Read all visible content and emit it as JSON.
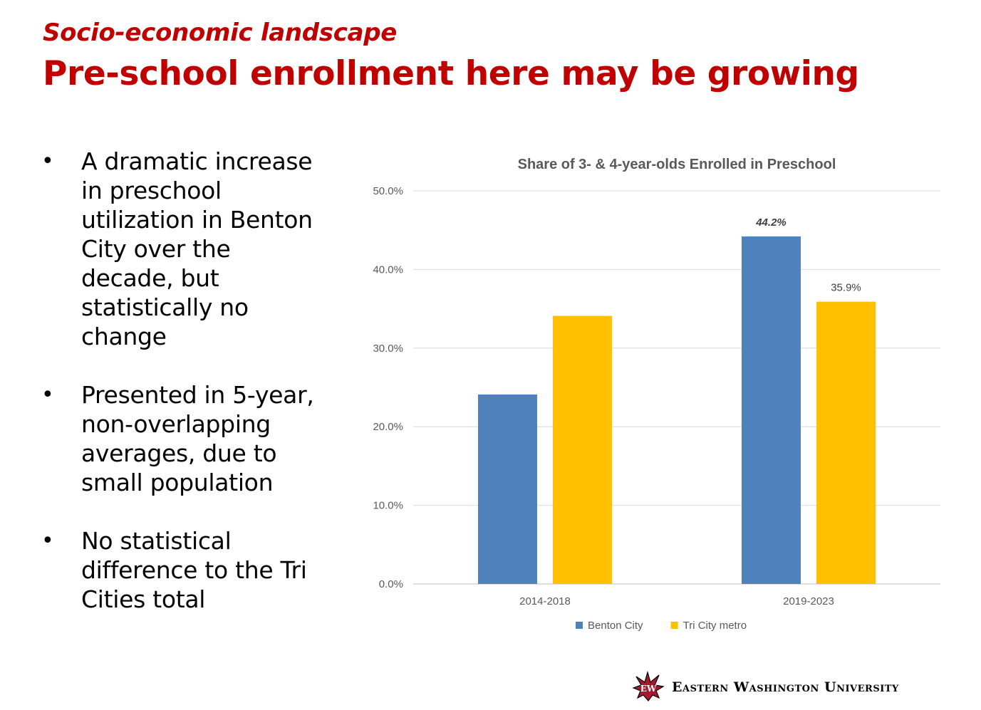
{
  "slide": {
    "kicker": "Socio-economic landscape",
    "headline": "Pre-school enrollment here may be growing",
    "bullets": [
      "A dramatic increase in preschool utilization in Benton City over the decade, but statistically no change",
      "Presented in 5-year, non-overlapping averages, due to small population",
      "No statistical difference to the Tri Cities total"
    ],
    "bullet_glyph": "•"
  },
  "chart_data": {
    "type": "bar",
    "title": "Share of 3- & 4-year-olds Enrolled in Preschool",
    "categories": [
      "2014-2018",
      "2019-2023"
    ],
    "series": [
      {
        "name": "Benton City",
        "values": [
          24.1,
          44.2
        ],
        "color": "#4f81bd"
      },
      {
        "name": "Tri City metro",
        "values": [
          34.1,
          35.9
        ],
        "color": "#ffc000"
      }
    ],
    "data_labels": [
      {
        "series": 0,
        "index": 1,
        "text": "44.2%",
        "style": "italic-bold"
      },
      {
        "series": 1,
        "index": 1,
        "text": "35.9%",
        "style": "normal"
      }
    ],
    "ylim": [
      0,
      50
    ],
    "yticks": [
      "0.0%",
      "10.0%",
      "20.0%",
      "30.0%",
      "40.0%",
      "50.0%"
    ],
    "xlabel": "",
    "ylabel": "",
    "grid": true,
    "legend": "bottom-center"
  },
  "branding": {
    "university_name": "Eastern Washington University",
    "logo_icon": "eagle-logo-icon"
  }
}
